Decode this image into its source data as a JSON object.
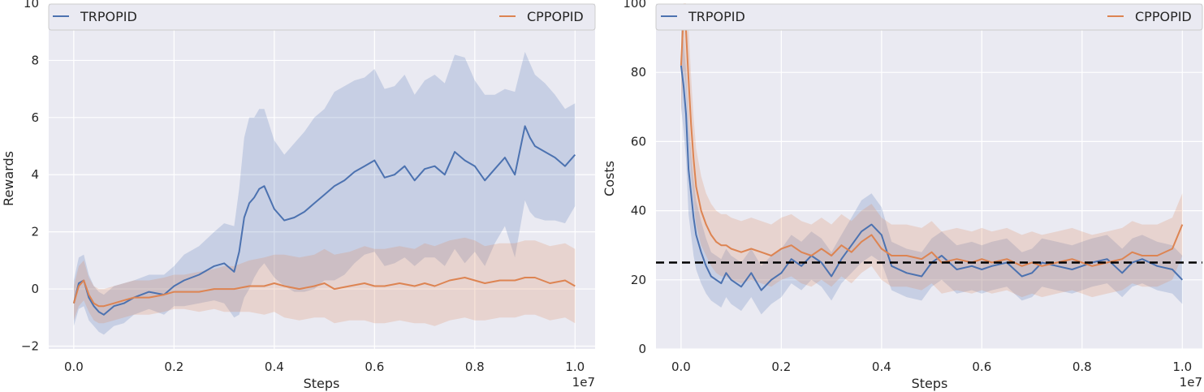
{
  "colors": {
    "background": "#eaeaf2",
    "grid": "#ffffff",
    "trpopid": "#4c72b0",
    "cppopid": "#dd8452",
    "threshold": "#000000"
  },
  "chart_data": [
    {
      "type": "line",
      "xlabel": "Steps",
      "ylabel": "Rewards",
      "x_offset_label": "1e7",
      "xlim": [
        -0.05,
        1.04
      ],
      "ylim": [
        -2.1,
        10.0
      ],
      "xticks": [
        0.0,
        0.2,
        0.4,
        0.6,
        0.8,
        1.0
      ],
      "xtick_labels": [
        "0.0",
        "0.2",
        "0.4",
        "0.6",
        "0.8",
        "1.0"
      ],
      "yticks": [
        -2,
        0,
        2,
        4,
        6,
        8,
        10
      ],
      "ytick_labels": [
        "−2",
        "0",
        "2",
        "4",
        "6",
        "8",
        "10"
      ],
      "grid": true,
      "legend": [
        "TRPOPID",
        "CPPOPID"
      ],
      "legend_position": "top",
      "series": [
        {
          "name": "TRPOPID",
          "x": [
            0.0,
            0.01,
            0.02,
            0.03,
            0.04,
            0.05,
            0.06,
            0.08,
            0.1,
            0.12,
            0.15,
            0.18,
            0.2,
            0.22,
            0.25,
            0.28,
            0.3,
            0.32,
            0.33,
            0.34,
            0.35,
            0.36,
            0.37,
            0.38,
            0.4,
            0.42,
            0.44,
            0.46,
            0.48,
            0.5,
            0.52,
            0.54,
            0.56,
            0.58,
            0.6,
            0.62,
            0.64,
            0.66,
            0.68,
            0.7,
            0.72,
            0.74,
            0.76,
            0.78,
            0.8,
            0.82,
            0.84,
            0.86,
            0.88,
            0.9,
            0.91,
            0.92,
            0.94,
            0.96,
            0.98,
            1.0
          ],
          "mean": [
            -0.5,
            0.2,
            0.3,
            -0.3,
            -0.6,
            -0.8,
            -0.9,
            -0.6,
            -0.5,
            -0.3,
            -0.1,
            -0.2,
            0.1,
            0.3,
            0.5,
            0.8,
            0.9,
            0.6,
            1.3,
            2.5,
            3.0,
            3.2,
            3.5,
            3.6,
            2.8,
            2.4,
            2.5,
            2.7,
            3.0,
            3.3,
            3.6,
            3.8,
            4.1,
            4.3,
            4.5,
            3.9,
            4.0,
            4.3,
            3.8,
            4.2,
            4.3,
            4.0,
            4.8,
            4.5,
            4.3,
            3.8,
            4.2,
            4.6,
            4.0,
            5.7,
            5.3,
            5.0,
            4.8,
            4.6,
            4.3,
            4.7
          ],
          "spread": [
            0.8,
            0.9,
            0.9,
            0.8,
            0.7,
            0.7,
            0.7,
            0.7,
            0.7,
            0.6,
            0.6,
            0.7,
            0.7,
            0.9,
            1.0,
            1.2,
            1.4,
            1.6,
            2.2,
            2.8,
            3.0,
            2.8,
            2.8,
            2.7,
            2.4,
            2.3,
            2.6,
            2.8,
            3.0,
            3.0,
            3.3,
            3.3,
            3.2,
            3.1,
            3.2,
            3.1,
            3.1,
            3.2,
            3.0,
            3.1,
            3.2,
            3.2,
            3.4,
            3.6,
            3.0,
            3.0,
            2.6,
            2.4,
            2.9,
            2.6,
            2.6,
            2.5,
            2.4,
            2.2,
            2.0,
            1.8
          ]
        },
        {
          "name": "CPPOPID",
          "x": [
            0.0,
            0.01,
            0.02,
            0.03,
            0.04,
            0.05,
            0.06,
            0.08,
            0.1,
            0.12,
            0.15,
            0.18,
            0.2,
            0.22,
            0.25,
            0.28,
            0.3,
            0.32,
            0.35,
            0.38,
            0.4,
            0.42,
            0.45,
            0.48,
            0.5,
            0.52,
            0.55,
            0.58,
            0.6,
            0.62,
            0.65,
            0.68,
            0.7,
            0.72,
            0.75,
            0.78,
            0.8,
            0.82,
            0.85,
            0.88,
            0.9,
            0.92,
            0.95,
            0.98,
            1.0
          ],
          "mean": [
            -0.5,
            0.1,
            0.3,
            -0.2,
            -0.5,
            -0.6,
            -0.6,
            -0.5,
            -0.4,
            -0.3,
            -0.3,
            -0.2,
            -0.1,
            -0.1,
            -0.1,
            0.0,
            0.0,
            0.0,
            0.1,
            0.1,
            0.2,
            0.1,
            0.0,
            0.1,
            0.2,
            0.0,
            0.1,
            0.2,
            0.1,
            0.1,
            0.2,
            0.1,
            0.2,
            0.1,
            0.3,
            0.4,
            0.3,
            0.2,
            0.3,
            0.3,
            0.4,
            0.4,
            0.2,
            0.3,
            0.1
          ],
          "spread": [
            0.6,
            0.7,
            0.7,
            0.6,
            0.6,
            0.6,
            0.6,
            0.6,
            0.6,
            0.6,
            0.6,
            0.6,
            0.6,
            0.6,
            0.7,
            0.7,
            0.8,
            0.8,
            0.9,
            1.0,
            1.0,
            1.1,
            1.1,
            1.1,
            1.2,
            1.2,
            1.2,
            1.3,
            1.3,
            1.3,
            1.3,
            1.3,
            1.4,
            1.4,
            1.4,
            1.4,
            1.4,
            1.3,
            1.3,
            1.3,
            1.3,
            1.3,
            1.3,
            1.3,
            1.3
          ]
        }
      ]
    },
    {
      "type": "line",
      "xlabel": "Steps",
      "ylabel": "Costs",
      "x_offset_label": "1e7",
      "xlim": [
        -0.05,
        1.04
      ],
      "ylim": [
        0,
        100
      ],
      "xticks": [
        0.0,
        0.2,
        0.4,
        0.6,
        0.8,
        1.0
      ],
      "xtick_labels": [
        "0.0",
        "0.2",
        "0.4",
        "0.6",
        "0.8",
        "1.0"
      ],
      "yticks": [
        0,
        20,
        40,
        60,
        80,
        100
      ],
      "ytick_labels": [
        "0",
        "20",
        "40",
        "60",
        "80",
        "100"
      ],
      "grid": true,
      "legend": [
        "TRPOPID",
        "CPPOPID"
      ],
      "legend_position": "top",
      "threshold": 25,
      "series": [
        {
          "name": "TRPOPID",
          "x": [
            0.0,
            0.005,
            0.01,
            0.015,
            0.02,
            0.025,
            0.03,
            0.04,
            0.05,
            0.06,
            0.07,
            0.08,
            0.09,
            0.1,
            0.12,
            0.14,
            0.16,
            0.18,
            0.2,
            0.22,
            0.24,
            0.26,
            0.28,
            0.3,
            0.32,
            0.34,
            0.36,
            0.38,
            0.4,
            0.42,
            0.45,
            0.48,
            0.5,
            0.52,
            0.55,
            0.58,
            0.6,
            0.62,
            0.65,
            0.68,
            0.7,
            0.72,
            0.75,
            0.78,
            0.8,
            0.82,
            0.85,
            0.88,
            0.9,
            0.92,
            0.95,
            0.98,
            1.0
          ],
          "mean": [
            82,
            76,
            68,
            52,
            45,
            38,
            33,
            28,
            24,
            21,
            20,
            19,
            22,
            20,
            18,
            22,
            17,
            20,
            22,
            26,
            24,
            27,
            25,
            21,
            26,
            30,
            34,
            36,
            33,
            24,
            22,
            21,
            25,
            27,
            23,
            24,
            23,
            24,
            25,
            21,
            22,
            25,
            24,
            23,
            24,
            25,
            26,
            22,
            25,
            26,
            24,
            23,
            20
          ],
          "spread": [
            12,
            13,
            13,
            13,
            12,
            11,
            10,
            9,
            8,
            7,
            7,
            7,
            7,
            7,
            7,
            7,
            7,
            7,
            7,
            7,
            7,
            7,
            7,
            7,
            7,
            8,
            9,
            9,
            8,
            7,
            7,
            7,
            7,
            7,
            7,
            7,
            7,
            7,
            7,
            7,
            7,
            7,
            7,
            7,
            7,
            7,
            7,
            7,
            7,
            7,
            7,
            7,
            7
          ]
        },
        {
          "name": "CPPOPID",
          "x": [
            0.0,
            0.005,
            0.01,
            0.015,
            0.02,
            0.025,
            0.03,
            0.04,
            0.05,
            0.06,
            0.07,
            0.08,
            0.09,
            0.1,
            0.12,
            0.14,
            0.16,
            0.18,
            0.2,
            0.22,
            0.24,
            0.26,
            0.28,
            0.3,
            0.32,
            0.34,
            0.36,
            0.38,
            0.4,
            0.42,
            0.45,
            0.48,
            0.5,
            0.52,
            0.55,
            0.58,
            0.6,
            0.62,
            0.65,
            0.68,
            0.7,
            0.72,
            0.75,
            0.78,
            0.8,
            0.82,
            0.85,
            0.88,
            0.9,
            0.92,
            0.95,
            0.98,
            1.0
          ],
          "mean": [
            82,
            97,
            92,
            78,
            65,
            55,
            47,
            40,
            36,
            33,
            31,
            30,
            30,
            29,
            28,
            29,
            28,
            27,
            29,
            30,
            28,
            27,
            29,
            27,
            30,
            28,
            31,
            33,
            29,
            27,
            27,
            26,
            28,
            25,
            26,
            25,
            26,
            25,
            26,
            24,
            25,
            24,
            25,
            26,
            25,
            24,
            25,
            26,
            28,
            27,
            27,
            29,
            36
          ],
          "spread": [
            15,
            16,
            16,
            15,
            14,
            12,
            11,
            10,
            9,
            9,
            9,
            9,
            9,
            9,
            9,
            9,
            9,
            9,
            9,
            9,
            9,
            9,
            9,
            9,
            9,
            9,
            9,
            9,
            9,
            9,
            9,
            9,
            9,
            9,
            9,
            9,
            9,
            9,
            9,
            9,
            9,
            9,
            9,
            9,
            9,
            9,
            9,
            9,
            9,
            9,
            9,
            9,
            9
          ]
        }
      ]
    }
  ]
}
